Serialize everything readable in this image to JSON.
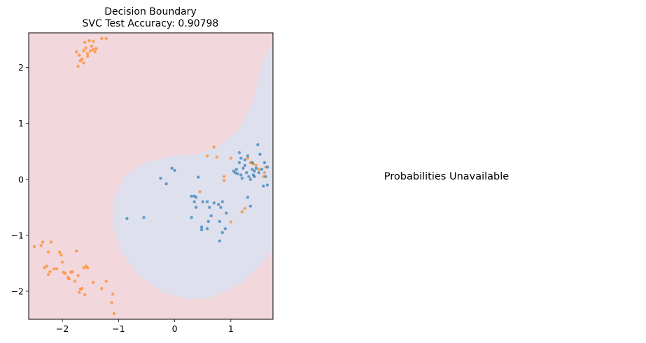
{
  "chart_data": {
    "type": "scatter",
    "title": "Decision Boundary",
    "subtitle": "SVC Test Accuracy: 0.90798",
    "xlabel": "",
    "ylabel": "",
    "xlim": [
      -2.6,
      1.75
    ],
    "ylim": [
      -2.5,
      2.62
    ],
    "xticks": [
      -2,
      -1,
      0,
      1
    ],
    "yticks": [
      -2,
      -1,
      0,
      1,
      2
    ],
    "xtick_labels": [
      "−2",
      "−1",
      "0",
      "1"
    ],
    "ytick_labels": [
      "−2",
      "−1",
      "0",
      "1",
      "2"
    ],
    "grid": false,
    "legend": "none",
    "regions": [
      {
        "class": "orange",
        "color": "#f2d7dd"
      },
      {
        "class": "blue",
        "color": "#dfe0ee",
        "boundary": [
          [
            1.75,
            2.45
          ],
          [
            1.55,
            2.05
          ],
          [
            1.4,
            1.4
          ],
          [
            1.15,
            0.9
          ],
          [
            0.8,
            0.6
          ],
          [
            0.4,
            0.45
          ],
          [
            0.0,
            0.42
          ],
          [
            -0.5,
            0.32
          ],
          [
            -0.9,
            0.05
          ],
          [
            -1.1,
            -0.4
          ],
          [
            -1.1,
            -0.85
          ],
          [
            -0.95,
            -1.3
          ],
          [
            -0.65,
            -1.7
          ],
          [
            -0.25,
            -2.0
          ],
          [
            0.25,
            -2.15
          ],
          [
            0.7,
            -2.1
          ],
          [
            1.2,
            -1.85
          ],
          [
            1.55,
            -1.5
          ],
          [
            1.75,
            -1.25
          ]
        ]
      }
    ],
    "series": [
      {
        "color": "#ff7f0e",
        "points": [
          [
            -1.75,
            2.28
          ],
          [
            -1.7,
            2.22
          ],
          [
            -1.65,
            2.15
          ],
          [
            -1.62,
            2.3
          ],
          [
            -1.58,
            2.35
          ],
          [
            -1.55,
            2.2
          ],
          [
            -1.5,
            2.3
          ],
          [
            -1.48,
            2.38
          ],
          [
            -1.45,
            2.32
          ],
          [
            -1.42,
            2.28
          ],
          [
            -1.6,
            2.45
          ],
          [
            -1.52,
            2.48
          ],
          [
            -1.45,
            2.47
          ],
          [
            -1.3,
            2.52
          ],
          [
            -1.22,
            2.52
          ],
          [
            -1.68,
            2.12
          ],
          [
            -1.62,
            2.08
          ],
          [
            -1.55,
            2.25
          ],
          [
            -1.72,
            2.02
          ],
          [
            -1.4,
            2.34
          ],
          [
            -2.5,
            -1.2
          ],
          [
            -2.38,
            -1.18
          ],
          [
            -2.35,
            -1.12
          ],
          [
            -2.2,
            -1.12
          ],
          [
            -2.25,
            -1.3
          ],
          [
            -2.32,
            -1.58
          ],
          [
            -2.28,
            -1.55
          ],
          [
            -2.22,
            -1.65
          ],
          [
            -2.15,
            -1.6
          ],
          [
            -2.05,
            -1.3
          ],
          [
            -2.02,
            -1.35
          ],
          [
            -2.0,
            -1.48
          ],
          [
            -1.98,
            -1.66
          ],
          [
            -1.9,
            -1.75
          ],
          [
            -1.88,
            -1.78
          ],
          [
            -1.82,
            -1.65
          ],
          [
            -1.78,
            -1.82
          ],
          [
            -1.75,
            -1.28
          ],
          [
            -1.72,
            -1.72
          ],
          [
            -1.68,
            -1.96
          ],
          [
            -1.65,
            -1.95
          ],
          [
            -1.62,
            -1.58
          ],
          [
            -1.58,
            -1.55
          ],
          [
            -1.55,
            -1.58
          ],
          [
            -1.6,
            -2.06
          ],
          [
            -1.7,
            -2.02
          ],
          [
            -1.45,
            -1.84
          ],
          [
            -1.3,
            -1.95
          ],
          [
            -1.22,
            -1.82
          ],
          [
            -1.1,
            -2.05
          ],
          [
            -1.12,
            -2.2
          ],
          [
            -1.08,
            -2.4
          ],
          [
            -2.25,
            -1.7
          ],
          [
            -2.1,
            -1.6
          ],
          [
            -1.95,
            -1.68
          ],
          [
            -1.85,
            -1.66
          ],
          [
            0.58,
            0.42
          ],
          [
            0.7,
            0.58
          ],
          [
            0.75,
            0.4
          ],
          [
            0.88,
            0.05
          ],
          [
            0.88,
            -0.02
          ],
          [
            0.45,
            -0.22
          ],
          [
            1.0,
            0.38
          ],
          [
            1.3,
            0.38
          ],
          [
            1.35,
            0.3
          ],
          [
            1.4,
            0.28
          ],
          [
            1.45,
            0.25
          ],
          [
            1.5,
            0.18
          ],
          [
            1.58,
            0.05
          ],
          [
            1.6,
            0.12
          ],
          [
            1.62,
            0.22
          ],
          [
            1.25,
            -0.52
          ],
          [
            1.2,
            -0.58
          ],
          [
            1.0,
            -0.76
          ]
        ]
      },
      {
        "color": "#1f77b4",
        "points": [
          [
            -0.05,
            0.2
          ],
          [
            0.0,
            0.16
          ],
          [
            -0.25,
            0.02
          ],
          [
            -0.15,
            -0.08
          ],
          [
            0.3,
            -0.3
          ],
          [
            0.35,
            -0.3
          ],
          [
            0.38,
            -0.32
          ],
          [
            0.42,
            0.04
          ],
          [
            0.35,
            -0.4
          ],
          [
            0.38,
            -0.5
          ],
          [
            0.5,
            -0.4
          ],
          [
            0.58,
            -0.4
          ],
          [
            0.62,
            -0.5
          ],
          [
            0.65,
            -0.65
          ],
          [
            0.7,
            -0.42
          ],
          [
            0.78,
            -0.45
          ],
          [
            0.82,
            -0.5
          ],
          [
            0.85,
            -0.4
          ],
          [
            0.6,
            -0.75
          ],
          [
            0.8,
            -0.75
          ],
          [
            0.85,
            -0.95
          ],
          [
            0.9,
            -0.88
          ],
          [
            0.8,
            -1.1
          ],
          [
            0.3,
            -0.68
          ],
          [
            0.48,
            -0.85
          ],
          [
            0.48,
            -0.9
          ],
          [
            0.58,
            -0.88
          ],
          [
            0.92,
            -0.6
          ],
          [
            -0.85,
            -0.7
          ],
          [
            -0.55,
            -0.68
          ],
          [
            1.05,
            0.15
          ],
          [
            1.1,
            0.18
          ],
          [
            1.12,
            0.1
          ],
          [
            1.15,
            0.3
          ],
          [
            1.15,
            0.48
          ],
          [
            1.18,
            0.08
          ],
          [
            1.2,
            0.02
          ],
          [
            1.22,
            0.2
          ],
          [
            1.25,
            0.25
          ],
          [
            1.28,
            0.12
          ],
          [
            1.3,
            0.42
          ],
          [
            1.32,
            0.05
          ],
          [
            1.35,
            0.0
          ],
          [
            1.38,
            0.18
          ],
          [
            1.4,
            0.08
          ],
          [
            1.42,
            0.15
          ],
          [
            1.45,
            0.2
          ],
          [
            1.48,
            0.62
          ],
          [
            1.5,
            0.12
          ],
          [
            1.52,
            0.45
          ],
          [
            1.55,
            0.18
          ],
          [
            1.58,
            -0.12
          ],
          [
            1.6,
            0.3
          ],
          [
            1.62,
            0.05
          ],
          [
            1.65,
            -0.1
          ],
          [
            1.65,
            0.22
          ],
          [
            1.3,
            -0.32
          ],
          [
            1.35,
            -0.48
          ],
          [
            1.25,
            0.35
          ],
          [
            1.18,
            0.38
          ],
          [
            1.08,
            0.12
          ],
          [
            1.38,
            0.3
          ],
          [
            1.42,
            0.05
          ]
        ]
      }
    ]
  },
  "right_panel": {
    "message": "Probabilities Unavailable"
  }
}
